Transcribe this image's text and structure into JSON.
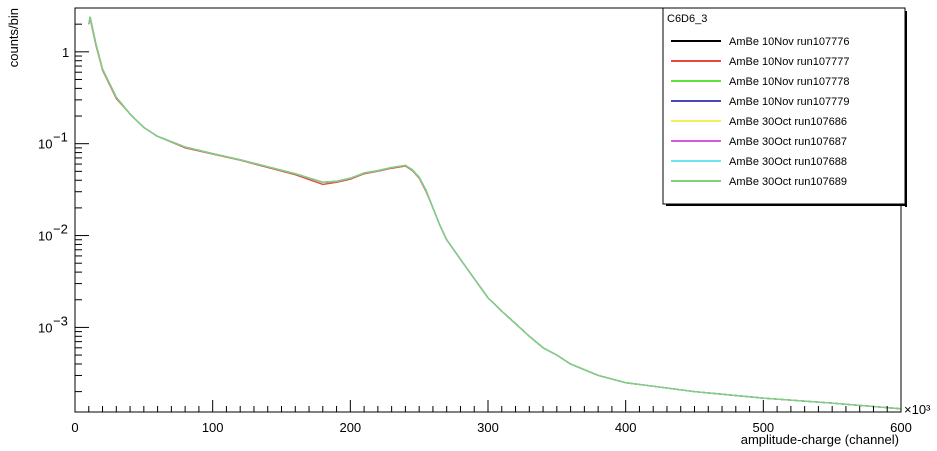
{
  "chart_data": {
    "type": "line",
    "title": "",
    "xlabel": "amplitude-charge (channel)",
    "ylabel": "counts/bin",
    "x_scale_note": "×10³",
    "x_unit_multiplier": 1000,
    "xlim": [
      0,
      600
    ],
    "ylim": [
      0.00012,
      3.0
    ],
    "yscale": "log",
    "grid": false,
    "legend": {
      "title": "C6D6_3",
      "placement": "top-right"
    },
    "x_ticks": [
      0,
      100,
      200,
      300,
      400,
      500,
      600
    ],
    "y_ticks": [
      {
        "value": 0.001,
        "base": "10",
        "exp": "−3"
      },
      {
        "value": 0.01,
        "base": "10",
        "exp": "−2"
      },
      {
        "value": 0.1,
        "base": "10",
        "exp": "−1"
      },
      {
        "value": 1,
        "base": "1",
        "exp": ""
      }
    ],
    "x": [
      10,
      11,
      15,
      20,
      30,
      40,
      50,
      60,
      80,
      100,
      120,
      140,
      160,
      180,
      190,
      200,
      210,
      220,
      230,
      240,
      245,
      250,
      255,
      260,
      265,
      270,
      280,
      290,
      300,
      310,
      320,
      330,
      340,
      350,
      360,
      380,
      400,
      450,
      500,
      550,
      600
    ],
    "series": [
      {
        "name": "AmBe 10Nov run107776",
        "color": "#000000",
        "values": [
          2.0,
          2.4,
          1.25,
          0.65,
          0.32,
          0.21,
          0.15,
          0.12,
          0.092,
          0.078,
          0.067,
          0.056,
          0.047,
          0.038,
          0.039,
          0.042,
          0.048,
          0.051,
          0.055,
          0.058,
          0.052,
          0.043,
          0.031,
          0.02,
          0.013,
          0.009,
          0.0055,
          0.0034,
          0.0021,
          0.0015,
          0.0011,
          0.0008,
          0.0006,
          0.0005,
          0.0004,
          0.0003,
          0.00025,
          0.0002,
          0.00017,
          0.00015,
          0.00013
        ]
      },
      {
        "name": "AmBe 10Nov run107777",
        "color": "#e8473a",
        "values": [
          2.0,
          2.3,
          1.2,
          0.63,
          0.31,
          0.21,
          0.15,
          0.12,
          0.09,
          0.077,
          0.066,
          0.055,
          0.046,
          0.036,
          0.038,
          0.041,
          0.047,
          0.05,
          0.054,
          0.057,
          0.051,
          0.042,
          0.03,
          0.02,
          0.013,
          0.009,
          0.0055,
          0.0034,
          0.0021,
          0.0015,
          0.0011,
          0.0008,
          0.0006,
          0.0005,
          0.0004,
          0.0003,
          0.00025,
          0.0002,
          0.00017,
          0.00015,
          0.00013
        ]
      },
      {
        "name": "AmBe 10Nov run107778",
        "color": "#5fe03a",
        "values": [
          2.0,
          2.4,
          1.25,
          0.65,
          0.32,
          0.21,
          0.15,
          0.12,
          0.092,
          0.078,
          0.067,
          0.056,
          0.047,
          0.038,
          0.039,
          0.042,
          0.048,
          0.051,
          0.055,
          0.058,
          0.052,
          0.043,
          0.031,
          0.02,
          0.013,
          0.009,
          0.0055,
          0.0034,
          0.0021,
          0.0015,
          0.0011,
          0.0008,
          0.0006,
          0.0005,
          0.0004,
          0.0003,
          0.00025,
          0.0002,
          0.00017,
          0.00015,
          0.00013
        ]
      },
      {
        "name": "AmBe 10Nov run107779",
        "color": "#4a48b8",
        "values": [
          2.0,
          2.4,
          1.25,
          0.65,
          0.32,
          0.21,
          0.15,
          0.12,
          0.092,
          0.078,
          0.067,
          0.056,
          0.047,
          0.038,
          0.039,
          0.042,
          0.048,
          0.051,
          0.055,
          0.058,
          0.052,
          0.043,
          0.031,
          0.02,
          0.013,
          0.009,
          0.0055,
          0.0034,
          0.0021,
          0.0015,
          0.0011,
          0.0008,
          0.0006,
          0.0005,
          0.0004,
          0.0003,
          0.00025,
          0.0002,
          0.00017,
          0.00015,
          0.00013
        ]
      },
      {
        "name": "AmBe 30Oct run107686",
        "color": "#f2ef5a",
        "values": [
          2.0,
          2.4,
          1.25,
          0.65,
          0.32,
          0.21,
          0.15,
          0.12,
          0.092,
          0.078,
          0.067,
          0.056,
          0.047,
          0.038,
          0.039,
          0.042,
          0.048,
          0.051,
          0.055,
          0.058,
          0.052,
          0.043,
          0.031,
          0.02,
          0.013,
          0.009,
          0.0055,
          0.0034,
          0.0021,
          0.0015,
          0.0011,
          0.0008,
          0.0006,
          0.0005,
          0.0004,
          0.0003,
          0.00025,
          0.0002,
          0.00017,
          0.00015,
          0.00013
        ]
      },
      {
        "name": "AmBe 30Oct run107687",
        "color": "#d85ae0",
        "values": [
          2.0,
          2.4,
          1.25,
          0.65,
          0.32,
          0.21,
          0.15,
          0.12,
          0.092,
          0.078,
          0.067,
          0.056,
          0.047,
          0.038,
          0.039,
          0.042,
          0.048,
          0.051,
          0.055,
          0.058,
          0.052,
          0.043,
          0.031,
          0.02,
          0.013,
          0.009,
          0.0055,
          0.0034,
          0.0021,
          0.0015,
          0.0011,
          0.0008,
          0.0006,
          0.0005,
          0.0004,
          0.0003,
          0.00025,
          0.0002,
          0.00017,
          0.00015,
          0.00013
        ]
      },
      {
        "name": "AmBe 30Oct run107688",
        "color": "#6ee6f2",
        "values": [
          2.0,
          2.4,
          1.25,
          0.65,
          0.32,
          0.21,
          0.15,
          0.12,
          0.092,
          0.078,
          0.067,
          0.056,
          0.047,
          0.038,
          0.039,
          0.042,
          0.048,
          0.051,
          0.055,
          0.058,
          0.052,
          0.043,
          0.031,
          0.02,
          0.013,
          0.009,
          0.0055,
          0.0034,
          0.0021,
          0.0015,
          0.0011,
          0.0008,
          0.0006,
          0.0005,
          0.0004,
          0.0003,
          0.00025,
          0.0002,
          0.00017,
          0.00015,
          0.00013
        ]
      },
      {
        "name": "AmBe 30Oct run107689",
        "color": "#7fd07a",
        "values": [
          2.0,
          2.4,
          1.25,
          0.65,
          0.32,
          0.21,
          0.15,
          0.12,
          0.092,
          0.078,
          0.067,
          0.056,
          0.047,
          0.038,
          0.039,
          0.042,
          0.048,
          0.051,
          0.055,
          0.058,
          0.052,
          0.043,
          0.031,
          0.02,
          0.013,
          0.009,
          0.0055,
          0.0034,
          0.0021,
          0.0015,
          0.0011,
          0.0008,
          0.0006,
          0.0005,
          0.0004,
          0.0003,
          0.00025,
          0.0002,
          0.00017,
          0.00015,
          0.00013
        ]
      }
    ]
  }
}
